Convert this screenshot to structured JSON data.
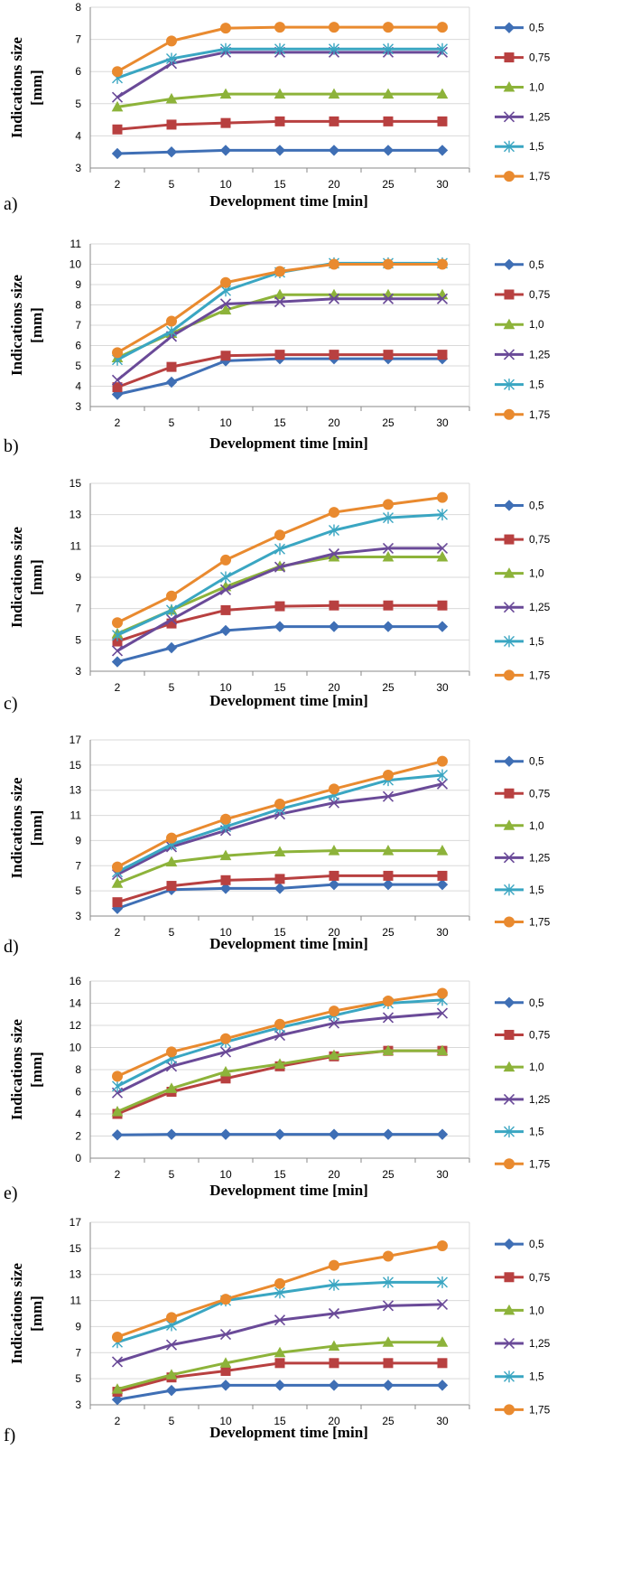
{
  "colors": {
    "0,5": "#3f6fb5",
    "0,75": "#b84040",
    "1,0": "#8db33a",
    "1,25": "#6a4a98",
    "1,5": "#3aa6c2",
    "1,75": "#e98a2f",
    "axis": "#8a8a8a",
    "grid": "#d9d9d9"
  },
  "chart_data": [
    {
      "type": "line",
      "panel_label": "a)",
      "xlabel": "Development time [min]",
      "ylabel": "Indications  size [mm]",
      "categories": [
        "2",
        "5",
        "10",
        "15",
        "20",
        "25",
        "30"
      ],
      "ylim": [
        3,
        8
      ],
      "yticks": [
        3,
        4,
        5,
        6,
        7,
        8
      ],
      "grid": "horizontal",
      "legend": "right",
      "series": [
        {
          "name": "0,5",
          "marker": "diamond",
          "values": [
            3.45,
            3.5,
            3.55,
            3.55,
            3.55,
            3.55,
            3.55
          ]
        },
        {
          "name": "0,75",
          "marker": "square",
          "values": [
            4.2,
            4.35,
            4.4,
            4.45,
            4.45,
            4.45,
            4.45
          ]
        },
        {
          "name": "1,0",
          "marker": "triangle",
          "values": [
            4.9,
            5.15,
            5.3,
            5.3,
            5.3,
            5.3,
            5.3
          ]
        },
        {
          "name": "1,25",
          "marker": "x",
          "values": [
            5.2,
            6.25,
            6.6,
            6.6,
            6.6,
            6.6,
            6.6
          ]
        },
        {
          "name": "1,5",
          "marker": "asterisk",
          "values": [
            5.8,
            6.4,
            6.7,
            6.7,
            6.7,
            6.7,
            6.7
          ]
        },
        {
          "name": "1,75",
          "marker": "circle",
          "values": [
            6.0,
            6.95,
            7.35,
            7.38,
            7.38,
            7.38,
            7.38
          ]
        }
      ]
    },
    {
      "type": "line",
      "panel_label": "b)",
      "xlabel": "Development time [min]",
      "ylabel": "Indications  size [mm]",
      "categories": [
        "2",
        "5",
        "10",
        "15",
        "20",
        "25",
        "30"
      ],
      "ylim": [
        3,
        11
      ],
      "yticks": [
        3,
        4,
        5,
        6,
        7,
        8,
        9,
        10,
        11
      ],
      "grid": "horizontal",
      "legend": "right",
      "series": [
        {
          "name": "0,5",
          "marker": "diamond",
          "values": [
            3.6,
            4.2,
            5.25,
            5.35,
            5.35,
            5.35,
            5.35
          ]
        },
        {
          "name": "0,75",
          "marker": "square",
          "values": [
            3.95,
            4.95,
            5.5,
            5.55,
            5.55,
            5.55,
            5.55
          ]
        },
        {
          "name": "1,0",
          "marker": "triangle",
          "values": [
            5.4,
            6.6,
            7.75,
            8.5,
            8.5,
            8.5,
            8.5
          ]
        },
        {
          "name": "1,25",
          "marker": "x",
          "values": [
            4.3,
            6.45,
            8.05,
            8.15,
            8.3,
            8.3,
            8.3
          ]
        },
        {
          "name": "1,5",
          "marker": "asterisk",
          "values": [
            5.3,
            6.7,
            8.7,
            9.6,
            10.05,
            10.05,
            10.05
          ]
        },
        {
          "name": "1,75",
          "marker": "circle",
          "values": [
            5.65,
            7.2,
            9.1,
            9.65,
            10.0,
            10.0,
            10.0
          ]
        }
      ]
    },
    {
      "type": "line",
      "panel_label": "c)",
      "xlabel": "Development time [min]",
      "ylabel": "Indications  size [mm]",
      "categories": [
        "2",
        "5",
        "10",
        "15",
        "20",
        "25",
        "30"
      ],
      "ylim": [
        3,
        15
      ],
      "yticks": [
        3,
        5,
        7,
        9,
        11,
        13,
        15
      ],
      "grid": "horizontal",
      "legend": "right",
      "series": [
        {
          "name": "0,5",
          "marker": "diamond",
          "values": [
            3.6,
            4.5,
            5.6,
            5.85,
            5.85,
            5.85,
            5.85
          ]
        },
        {
          "name": "0,75",
          "marker": "square",
          "values": [
            4.9,
            6.05,
            6.9,
            7.15,
            7.2,
            7.2,
            7.2
          ]
        },
        {
          "name": "1,0",
          "marker": "triangle",
          "values": [
            5.4,
            6.9,
            8.4,
            9.7,
            10.3,
            10.3,
            10.3
          ]
        },
        {
          "name": "1,25",
          "marker": "x",
          "values": [
            4.3,
            6.3,
            8.2,
            9.65,
            10.5,
            10.85,
            10.85
          ]
        },
        {
          "name": "1,5",
          "marker": "asterisk",
          "values": [
            5.3,
            6.9,
            9.0,
            10.8,
            12.0,
            12.8,
            13.0
          ]
        },
        {
          "name": "1,75",
          "marker": "circle",
          "values": [
            6.1,
            7.8,
            10.1,
            11.7,
            13.15,
            13.65,
            14.1
          ]
        }
      ]
    },
    {
      "type": "line",
      "panel_label": "d)",
      "xlabel": "Development time [min]",
      "ylabel": "Indications  size [mm]",
      "categories": [
        "2",
        "5",
        "10",
        "15",
        "20",
        "25",
        "30"
      ],
      "ylim": [
        3,
        17
      ],
      "yticks": [
        3,
        5,
        7,
        9,
        11,
        13,
        15,
        17
      ],
      "grid": "horizontal",
      "legend": "right",
      "series": [
        {
          "name": "0,5",
          "marker": "diamond",
          "values": [
            3.6,
            5.1,
            5.2,
            5.2,
            5.5,
            5.5,
            5.5
          ]
        },
        {
          "name": "0,75",
          "marker": "square",
          "values": [
            4.1,
            5.4,
            5.85,
            5.95,
            6.2,
            6.2,
            6.2
          ]
        },
        {
          "name": "1,0",
          "marker": "triangle",
          "values": [
            5.6,
            7.3,
            7.8,
            8.1,
            8.2,
            8.2,
            8.2
          ]
        },
        {
          "name": "1,25",
          "marker": "x",
          "values": [
            6.3,
            8.5,
            9.8,
            11.1,
            12.0,
            12.5,
            13.5
          ]
        },
        {
          "name": "1,5",
          "marker": "asterisk",
          "values": [
            6.5,
            8.7,
            10.1,
            11.5,
            12.6,
            13.8,
            14.2
          ]
        },
        {
          "name": "1,75",
          "marker": "circle",
          "values": [
            6.9,
            9.2,
            10.7,
            11.9,
            13.1,
            14.2,
            15.3
          ]
        }
      ]
    },
    {
      "type": "line",
      "panel_label": "e)",
      "xlabel": "Development time [min]",
      "ylabel": "Indications  size [mm]",
      "categories": [
        "2",
        "5",
        "10",
        "15",
        "20",
        "25",
        "30"
      ],
      "ylim": [
        0,
        16
      ],
      "yticks": [
        0,
        2,
        4,
        6,
        8,
        10,
        12,
        14,
        16
      ],
      "grid": "horizontal",
      "legend": "right",
      "series": [
        {
          "name": "0,5",
          "marker": "diamond",
          "values": [
            2.1,
            2.15,
            2.15,
            2.15,
            2.15,
            2.15,
            2.15
          ]
        },
        {
          "name": "0,75",
          "marker": "square",
          "values": [
            4.0,
            6.0,
            7.2,
            8.3,
            9.2,
            9.7,
            9.7
          ]
        },
        {
          "name": "1,0",
          "marker": "triangle",
          "values": [
            4.2,
            6.3,
            7.8,
            8.5,
            9.3,
            9.7,
            9.7
          ]
        },
        {
          "name": "1,25",
          "marker": "x",
          "values": [
            5.9,
            8.3,
            9.6,
            11.1,
            12.2,
            12.7,
            13.1
          ]
        },
        {
          "name": "1,5",
          "marker": "asterisk",
          "values": [
            6.5,
            9.0,
            10.5,
            11.8,
            12.9,
            14.0,
            14.3
          ]
        },
        {
          "name": "1,75",
          "marker": "circle",
          "values": [
            7.4,
            9.6,
            10.8,
            12.1,
            13.3,
            14.2,
            14.9
          ]
        }
      ]
    },
    {
      "type": "line",
      "panel_label": "f)",
      "xlabel": "Development time [min]",
      "ylabel": "Indications  size [mm]",
      "categories": [
        "2",
        "5",
        "10",
        "15",
        "20",
        "25",
        "30"
      ],
      "ylim": [
        3,
        17
      ],
      "yticks": [
        3,
        5,
        7,
        9,
        11,
        13,
        15,
        17
      ],
      "grid": "horizontal",
      "legend": "right",
      "series": [
        {
          "name": "0,5",
          "marker": "diamond",
          "values": [
            3.4,
            4.1,
            4.5,
            4.5,
            4.5,
            4.5,
            4.5
          ]
        },
        {
          "name": "0,75",
          "marker": "square",
          "values": [
            4.0,
            5.1,
            5.6,
            6.2,
            6.2,
            6.2,
            6.2
          ]
        },
        {
          "name": "1,0",
          "marker": "triangle",
          "values": [
            4.2,
            5.3,
            6.2,
            7.0,
            7.5,
            7.8,
            7.8
          ]
        },
        {
          "name": "1,25",
          "marker": "x",
          "values": [
            6.3,
            7.6,
            8.4,
            9.5,
            10.0,
            10.6,
            10.7
          ]
        },
        {
          "name": "1,5",
          "marker": "asterisk",
          "values": [
            7.8,
            9.1,
            11.0,
            11.6,
            12.2,
            12.4,
            12.4
          ]
        },
        {
          "name": "1,75",
          "marker": "circle",
          "values": [
            8.2,
            9.7,
            11.1,
            12.3,
            13.7,
            14.4,
            15.2
          ]
        }
      ]
    }
  ]
}
